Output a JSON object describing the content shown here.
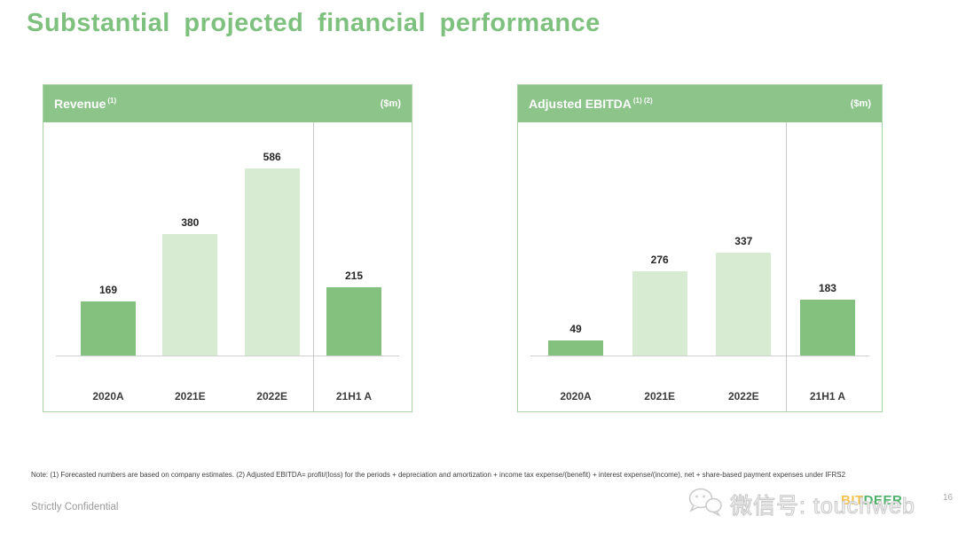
{
  "slide": {
    "title": "Substantial projected financial performance",
    "note": "Note: (1) Forecasted numbers are based on company estimates. (2) Adjusted EBITDA= profit/(loss) for the periods + depreciation and amortization + income tax expense/(benefit) + interest expense/(income), net + share-based payment expenses under IFRS2",
    "confidential": "Strictly Confidential",
    "page_number": "16"
  },
  "watermark": {
    "icon": "wechat-icon",
    "text": "微信号: touchweb"
  },
  "logo": {
    "part1": "BIT",
    "part2": "DEER"
  },
  "colors": {
    "title_green": "#7EC07E",
    "header_band_green": "#8CC48A",
    "bar_actual": "#84C07E",
    "bar_estimate": "#D6EBD2",
    "panel_border": "#A6D4A4",
    "separator_gray": "#C9C9C9",
    "logo_bit_yellow": "#F2C24E",
    "logo_deer_green": "#4DB26A"
  },
  "chart_data": [
    {
      "type": "bar",
      "title": "Revenue",
      "title_superscript": "(1)",
      "unit": "($m)",
      "categories": [
        "2020A",
        "2021E",
        "2022E",
        "21H1 A"
      ],
      "values": [
        169,
        380,
        586,
        215
      ],
      "bar_styles": [
        "actual",
        "estimate",
        "estimate",
        "actual"
      ],
      "ylim": [
        0,
        730
      ],
      "separator_after_index": 2,
      "grid": false,
      "legend": false
    },
    {
      "type": "bar",
      "title": "Adjusted EBITDA",
      "title_superscript": "(1) (2)",
      "unit": "($m)",
      "categories": [
        "2020A",
        "2021E",
        "2022E",
        "21H1 A"
      ],
      "values": [
        49,
        276,
        337,
        183
      ],
      "bar_styles": [
        "actual",
        "estimate",
        "estimate",
        "actual"
      ],
      "ylim": [
        0,
        765
      ],
      "separator_after_index": 2,
      "grid": false,
      "legend": false
    }
  ]
}
